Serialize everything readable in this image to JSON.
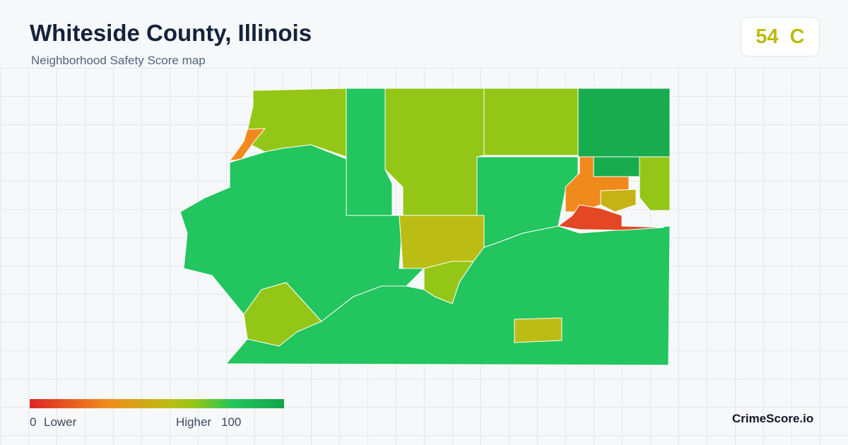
{
  "header": {
    "title": "Whiteside County, Illinois",
    "subtitle": "Neighborhood Safety Score map"
  },
  "score": {
    "value": 54,
    "grade": "C"
  },
  "legend": {
    "min": 0,
    "min_label": "Lower",
    "max_label": "Higher",
    "max": 100
  },
  "map": {
    "region_scores": [
      65,
      30,
      80,
      65,
      65,
      95,
      65,
      80,
      55,
      65,
      65,
      80,
      80,
      30,
      10,
      55,
      50,
      95
    ]
  },
  "brand": "CrimeScore.io"
}
